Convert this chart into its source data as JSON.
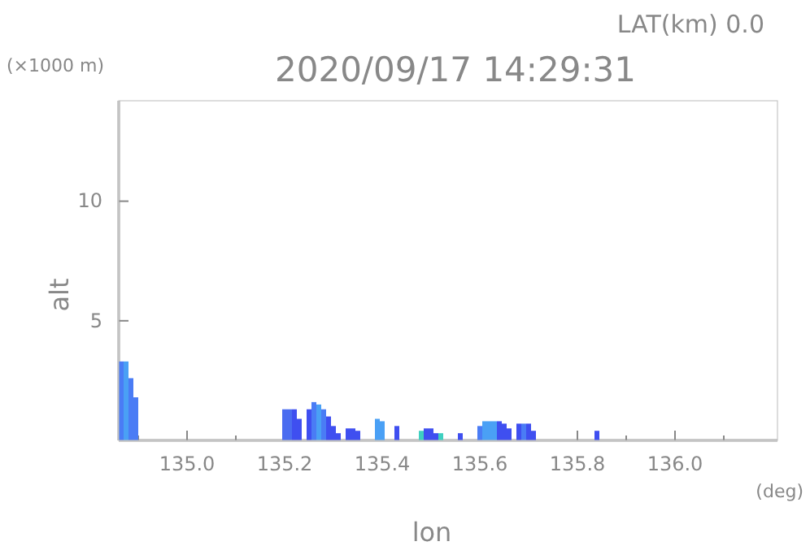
{
  "chart_data": {
    "type": "bar",
    "title": "2020/09/17 14:29:31",
    "subtitle": "LAT(km) 0.0",
    "xlabel": "lon",
    "ylabel": "alt",
    "annotations": [
      "(×1000 m)",
      "(deg)"
    ],
    "x": [
      134.865,
      134.875,
      134.885,
      134.895,
      135.2,
      135.21,
      135.22,
      135.23,
      135.25,
      135.26,
      135.27,
      135.28,
      135.29,
      135.3,
      135.31,
      135.33,
      135.34,
      135.35,
      135.39,
      135.4,
      135.43,
      135.48,
      135.49,
      135.5,
      135.51,
      135.52,
      135.56,
      135.6,
      135.61,
      135.62,
      135.63,
      135.64,
      135.65,
      135.66,
      135.68,
      135.69,
      135.7,
      135.71,
      135.84
    ],
    "values": [
      3.3,
      3.3,
      2.6,
      1.8,
      1.3,
      1.3,
      1.3,
      0.9,
      1.3,
      1.6,
      1.5,
      1.3,
      1.0,
      0.6,
      0.3,
      0.5,
      0.5,
      0.4,
      0.9,
      0.8,
      0.6,
      0.4,
      0.5,
      0.5,
      0.3,
      0.3,
      0.3,
      0.6,
      0.8,
      0.8,
      0.8,
      0.8,
      0.7,
      0.5,
      0.7,
      0.7,
      0.7,
      0.4,
      0.4
    ],
    "colors": [
      "#4a7cf5",
      "#4aa0f5",
      "#4a7cf5",
      "#4a7cf5",
      "#4a6cf0",
      "#4a6cf0",
      "#3f4ff0",
      "#3f4ff0",
      "#3f4ff0",
      "#4a7cf5",
      "#4aa0f5",
      "#4a7cf5",
      "#3f4ff0",
      "#3f4ff0",
      "#3f4ff0",
      "#3f4ff0",
      "#3f4ff0",
      "#3f4ff0",
      "#4aa0f5",
      "#4aa0f5",
      "#3f4ff0",
      "#3fd0c0",
      "#3f4ff0",
      "#3f4ff0",
      "#3f4ff0",
      "#3fd0c0",
      "#3f4ff0",
      "#4a7cf5",
      "#4aa0f5",
      "#4aa0f5",
      "#4aa0f5",
      "#3f4ff0",
      "#3f4ff0",
      "#3f4ff0",
      "#3f4ff0",
      "#4a7cf5",
      "#3f4ff0",
      "#3f4ff0",
      "#3f4ff0"
    ],
    "xlim": [
      134.86,
      136.21
    ],
    "ylim": [
      0,
      14.2
    ],
    "xticks": [
      {
        "value": 134.9,
        "label": null
      },
      {
        "value": 135.0,
        "label": "135.0"
      },
      {
        "value": 135.1,
        "label": null
      },
      135.2,
      {
        "value": 135.3,
        "label": null
      },
      135.4,
      {
        "value": 135.5,
        "label": null
      },
      135.6,
      {
        "value": 135.7,
        "label": null
      },
      135.8,
      {
        "value": 135.9,
        "label": null
      },
      {
        "value": 136.0,
        "label": "136.0"
      },
      {
        "value": 136.1,
        "label": null
      }
    ],
    "yticks": [
      5,
      10
    ]
  }
}
